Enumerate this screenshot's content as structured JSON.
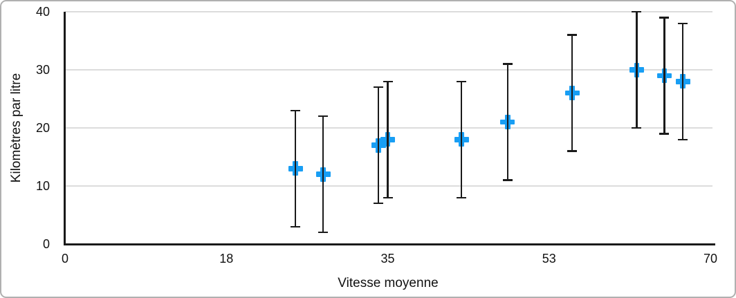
{
  "frame": {
    "background": "#ffffff",
    "border_color": "#b0b0b0"
  },
  "style": {
    "marker_color": "#189ef4",
    "error_bar_color": "#1a1a1a",
    "gridline_color": "#dcdcdc",
    "axis_color": "#1a1a1a",
    "text_color": "#111111"
  },
  "chart_data": {
    "type": "scatter",
    "title": "",
    "xlabel": "Vitesse moyenne",
    "ylabel": "Kilomètres par litre",
    "xlim": [
      0,
      70
    ],
    "ylim": [
      0,
      40
    ],
    "grid": true,
    "legend_position": "none",
    "x_ticks": [
      {
        "pos": 0,
        "label": "0"
      },
      {
        "pos": 17.5,
        "label": "18"
      },
      {
        "pos": 35,
        "label": "35"
      },
      {
        "pos": 52.5,
        "label": "53"
      },
      {
        "pos": 70,
        "label": "70"
      }
    ],
    "y_ticks": [
      {
        "pos": 0,
        "label": "0"
      },
      {
        "pos": 10,
        "label": "10"
      },
      {
        "pos": 20,
        "label": "20"
      },
      {
        "pos": 30,
        "label": "30"
      },
      {
        "pos": 40,
        "label": "40"
      }
    ],
    "error_bars": {
      "type": "fixed_value",
      "plus": 10,
      "minus": 10,
      "cap_style": "T"
    },
    "series": [
      {
        "marker": "plus",
        "color": "#189ef4",
        "points": [
          {
            "x": 25,
            "y": 13
          },
          {
            "x": 28,
            "y": 12
          },
          {
            "x": 34,
            "y": 17
          },
          {
            "x": 35,
            "y": 18
          },
          {
            "x": 43,
            "y": 18
          },
          {
            "x": 48,
            "y": 21
          },
          {
            "x": 55,
            "y": 26
          },
          {
            "x": 62,
            "y": 30
          },
          {
            "x": 65,
            "y": 29
          },
          {
            "x": 67,
            "y": 28
          }
        ]
      }
    ]
  }
}
